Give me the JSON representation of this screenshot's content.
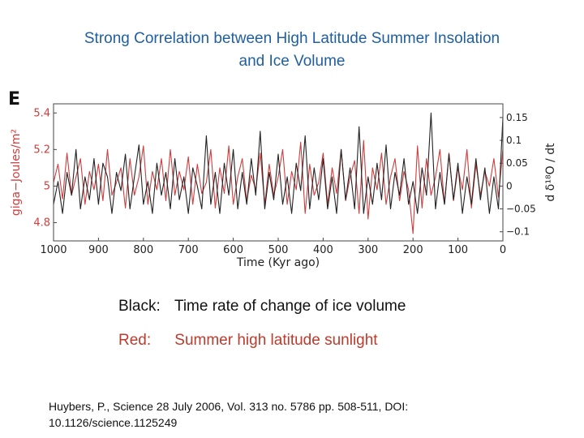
{
  "title_line1": "Strong Correlation between High Latitude Summer Insolation",
  "title_line2": "and Ice Volume",
  "legend": {
    "black_label": "Black:",
    "black_text": "Time rate of change of ice volume",
    "red_label": "Red:",
    "red_text": "Summer high latitude sunlight"
  },
  "citation_line1": "Huybers, P., Science 28 July 2006, Vol. 313 no. 5786 pp. 508-511, DOI:",
  "citation_line2": "10.1126/science.1125249",
  "colors": {
    "title": "#1f5fa0",
    "insolation": "#d23c3c",
    "ice_rate": "#222222",
    "left_axis": "#d23c3c"
  },
  "chart_data": {
    "type": "line",
    "panel_label": "E",
    "xlabel": "Time (Kyr ago)",
    "ylabel_left": "giga−Joules/m²",
    "ylabel_right": "d δ¹⁸O / dt",
    "xlim": [
      1000,
      0
    ],
    "ylim_left": [
      4.7,
      5.45
    ],
    "ylim_right": [
      -0.12,
      0.18
    ],
    "x_ticks": [
      "1000",
      "900",
      "800",
      "700",
      "600",
      "500",
      "400",
      "300",
      "200",
      "100",
      "0"
    ],
    "y_ticks_left": [
      "5.4",
      "5.2",
      "5",
      "4.8"
    ],
    "y_ticks_right": [
      "0.15",
      "0.1",
      "0.05",
      "0",
      "−0.05",
      "−0.1"
    ],
    "series": [
      {
        "axis": "left",
        "color": "#d23c3c",
        "x": [
          1000,
          990,
          980,
          970,
          960,
          950,
          940,
          930,
          920,
          910,
          900,
          890,
          880,
          870,
          860,
          850,
          840,
          830,
          820,
          810,
          800,
          790,
          780,
          770,
          760,
          750,
          740,
          730,
          720,
          710,
          700,
          690,
          680,
          670,
          660,
          650,
          640,
          630,
          620,
          610,
          600,
          590,
          580,
          570,
          560,
          550,
          540,
          530,
          520,
          510,
          500,
          490,
          480,
          470,
          460,
          450,
          440,
          430,
          420,
          410,
          400,
          390,
          380,
          370,
          360,
          350,
          340,
          330,
          320,
          310,
          300,
          290,
          280,
          270,
          260,
          250,
          240,
          230,
          220,
          210,
          200,
          190,
          180,
          170,
          160,
          150,
          140,
          130,
          120,
          110,
          100,
          90,
          80,
          70,
          60,
          50,
          40,
          30,
          20,
          10,
          0
        ],
        "y": [
          5.02,
          5.12,
          4.93,
          5.18,
          4.95,
          5.05,
          5.15,
          4.9,
          5.08,
          4.98,
          5.12,
          4.92,
          5.2,
          4.95,
          5.02,
          5.1,
          4.88,
          5.15,
          4.95,
          5.05,
          5.22,
          4.9,
          5.08,
          4.98,
          5.15,
          4.92,
          5.2,
          4.95,
          5.08,
          4.98,
          5.16,
          4.9,
          5.12,
          4.96,
          5.02,
          5.2,
          4.88,
          5.1,
          4.96,
          5.22,
          4.9,
          5.05,
          5.15,
          4.92,
          5.06,
          4.98,
          5.18,
          4.9,
          5.12,
          4.95,
          5.05,
          5.2,
          4.9,
          5.08,
          4.98,
          5.24,
          4.85,
          5.12,
          4.95,
          5.02,
          5.18,
          4.9,
          5.1,
          4.96,
          5.2,
          4.92,
          5.05,
          5.14,
          4.85,
          5.25,
          4.82,
          5.1,
          4.98,
          5.18,
          4.9,
          5.05,
          5.15,
          4.92,
          5.08,
          4.98,
          4.74,
          5.22,
          4.88,
          5.15,
          4.95,
          5.05,
          5.2,
          4.9,
          5.18,
          4.92,
          5.1,
          4.98,
          5.2,
          4.88,
          5.12,
          4.95,
          5.08,
          5.0,
          5.15,
          4.94,
          5.2
        ]
      },
      {
        "axis": "right",
        "color": "#222222",
        "x": [
          1000,
          990,
          980,
          970,
          960,
          950,
          940,
          930,
          920,
          910,
          900,
          890,
          880,
          870,
          860,
          850,
          840,
          830,
          820,
          810,
          800,
          790,
          780,
          770,
          760,
          750,
          740,
          730,
          720,
          710,
          700,
          690,
          680,
          670,
          660,
          650,
          640,
          630,
          620,
          610,
          600,
          590,
          580,
          570,
          560,
          550,
          540,
          530,
          520,
          510,
          500,
          490,
          480,
          470,
          460,
          450,
          440,
          430,
          420,
          410,
          400,
          390,
          380,
          370,
          360,
          350,
          340,
          330,
          320,
          310,
          300,
          290,
          280,
          270,
          260,
          250,
          240,
          230,
          220,
          210,
          200,
          190,
          180,
          170,
          160,
          150,
          140,
          130,
          120,
          110,
          100,
          90,
          80,
          70,
          60,
          50,
          40,
          30,
          20,
          10,
          0
        ],
        "y": [
          -0.04,
          0.01,
          -0.06,
          0.03,
          -0.02,
          0.08,
          -0.05,
          0.02,
          -0.03,
          0.06,
          -0.04,
          0.05,
          0.02,
          -0.06,
          0.03,
          -0.01,
          0.07,
          -0.05,
          0.02,
          0.09,
          -0.04,
          0.01,
          -0.06,
          0.05,
          -0.02,
          0.03,
          -0.05,
          0.06,
          -0.03,
          0.02,
          -0.06,
          0.04,
          0.0,
          -0.05,
          0.11,
          -0.04,
          0.03,
          -0.06,
          0.05,
          -0.02,
          0.08,
          -0.05,
          0.03,
          -0.04,
          0.06,
          -0.02,
          0.12,
          -0.05,
          0.03,
          -0.03,
          0.07,
          -0.04,
          0.02,
          -0.06,
          0.05,
          -0.01,
          0.11,
          -0.05,
          0.04,
          -0.03,
          0.06,
          -0.05,
          0.02,
          -0.06,
          0.08,
          -0.03,
          0.04,
          -0.05,
          0.13,
          -0.06,
          0.02,
          -0.04,
          0.05,
          -0.03,
          0.09,
          -0.05,
          0.03,
          -0.02,
          0.06,
          -0.04,
          0.01,
          -0.06,
          0.04,
          -0.02,
          0.16,
          -0.05,
          0.03,
          -0.04,
          0.07,
          -0.03,
          0.05,
          -0.06,
          0.02,
          -0.04,
          0.06,
          -0.03,
          0.04,
          -0.06,
          0.02,
          -0.05,
          0.15
        ]
      }
    ]
  }
}
